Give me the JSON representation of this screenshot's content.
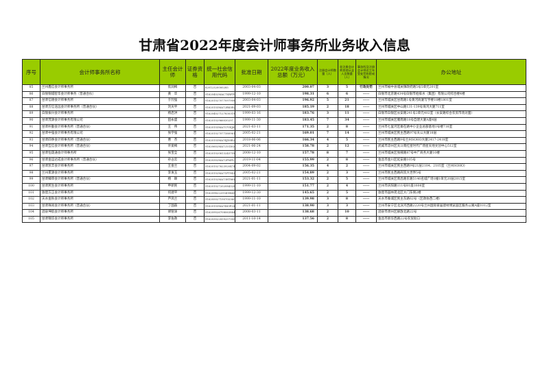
{
  "title": "甘肃省2022年度会计师事务所业务收入信息",
  "header": [
    "序号",
    "会计师事务所名称",
    "主任会计师",
    "证券资格",
    "统一社会信用代码",
    "批准日期",
    "2022年度业务收入总额（万元）",
    "注册会计师数量（人）",
    "非注册会计师其他从业人员数量（人）",
    "事务所及注册会计师近三年受处罚和惩戒情况",
    "办公地址"
  ],
  "rows": [
    [
      "85",
      "兰州鑫信会计师事务所",
      "焦润梅",
      "否",
      "62012320000285",
      "2003-04-03",
      "200.07",
      "3",
      "5",
      "行政处罚",
      "兰州市榆中县城关镇政府路5号5单元201室"
    ],
    [
      "86",
      "白银铜城智华会计师事务（普通合伙）",
      "黄　华",
      "否",
      "91620402MAC7XRFP93",
      "1999-12-10",
      "198.31",
      "6",
      "6",
      "-----",
      "白银市北京路434号白银市给排水（集团）有限公司综合楼4楼"
    ],
    [
      "87",
      "甘肃信德会计师事务所",
      "于烈强",
      "否",
      "916201027077097908",
      "2003-04-03",
      "196.92",
      "5",
      "21",
      "-----",
      "兰州市城关区甘南路1号黄河商厦写字楼18楼1801室"
    ],
    [
      "88",
      "甘肃方信浩远会计师事务所（普通合伙）",
      "刘天平",
      "否",
      "91620103MA72RK0R26",
      "2021-09-03",
      "185.19",
      "2",
      "18",
      "-----",
      "兰州市城关区中山路131-139号海鸿大厦711室"
    ],
    [
      "89",
      "白银振兴会计师事务所",
      "杨启洪",
      "否",
      "916204027127830318",
      "1999-03-16",
      "183.76",
      "3",
      "11",
      "-----",
      "白银市白银区长安路241号2单元402室（长安路综合农贸市场对面）"
    ],
    [
      "90",
      "甘肃茂源会计师事务有限公司",
      "田永盛",
      "否",
      "91620102966030297",
      "1999-11-30",
      "183.45",
      "7",
      "34",
      "-----",
      "兰州市城关区雁南路18号自建大厦A座4层"
    ],
    [
      "91",
      "甘肃朴勤会计师事务所（普通合伙）",
      "王　伟",
      "否",
      "91620103MA7570XJ6P",
      "2021-03-11",
      "171.35",
      "2",
      "8",
      "-----",
      "兰州市七里河区秦在路中小企业总部基地1号楼716室"
    ],
    [
      "92",
      "甘肃中强会计师事务有限公司",
      "张学强",
      "否",
      "916201027077380961",
      "2005-02-21",
      "169.01",
      "7",
      "14",
      "-----",
      "兰州市城关区民主西路97号天公大厦18层"
    ],
    [
      "93",
      "甘肃四季会计师事务所（普通合伙）",
      "曹　杰",
      "否",
      "91620103MA74JD8R2M",
      "2018-06-06",
      "166.34",
      "4",
      "5",
      "-----",
      "兰州市民主西路9号兰州SOHO大厦2417-2418室"
    ],
    [
      "94",
      "甘肃互信会计师事务所（普通合伙）",
      "许爱梅",
      "否",
      "91620602MA721GDQ01",
      "2021-06-24",
      "158.78",
      "2",
      "12",
      "-----",
      "武威市凉州区天斗南红星时代广场星天地文创中心512室"
    ],
    [
      "95",
      "甘肃恒晟通会计师事务所",
      "张宝全",
      "否",
      "91620102081324570X",
      "2008-12-10",
      "157.78",
      "8",
      "7",
      "-----",
      "兰州市城关区张掖路87号中广商务大厦10楼"
    ],
    [
      "96",
      "甘肃金运达成会计师事务所（普通合伙）",
      "孙占云",
      "否",
      "91620302MA72FMPL74",
      "2019-11-04",
      "155.99",
      "2",
      "8",
      "-----",
      "金昌市金川区延安路105号"
    ],
    [
      "97",
      "甘肃凯丰会计师事务所",
      "王金兰",
      "否",
      "916201027623920474",
      "2004-09-02",
      "156.35",
      "4",
      "2",
      "-----",
      "兰州市城关区民主西路9号21层2104、2105室（兰州SOHO）"
    ],
    [
      "98",
      "兰州累源会计师事务所",
      "李发玉",
      "否",
      "91620102MA71FT9438",
      "2005-02-21",
      "154.89",
      "2",
      "3",
      "-----",
      "兰州市民主西路商贸大世界5号"
    ],
    [
      "99",
      "甘肃臻审会计师事务所（普通合伙）",
      "杨　颖",
      "否",
      "91620102MA73HT66L",
      "2021-01-11",
      "153.32",
      "2",
      "5",
      "-----",
      "兰州市城关区南昌路东路5146名城广场1幢1单元20层2015室"
    ],
    [
      "100",
      "甘肃民生会计师事务所",
      "申新民",
      "否",
      "916201027202084328",
      "1999-11-10",
      "151.77",
      "2",
      "4",
      "-----",
      "兰州市庆阳路111号B1座1606室"
    ],
    [
      "101",
      "敦煌方正会计师事务所",
      "何建平",
      "否",
      "916209822251409445",
      "1999-12-30",
      "145.65",
      "2",
      "5",
      "-----",
      "敦煌市园林苑北区大门东侧2楼"
    ],
    [
      "102",
      "天水金秋会计师事务所",
      "芦凤兰",
      "否",
      "91620502719070536C",
      "1999-11-10",
      "139.98",
      "3",
      "8",
      "-----",
      "天水市秦城区民主东路62号（区政协西二楼）"
    ],
    [
      "103",
      "甘肃殊尚会计师事务所（普通合伙）",
      "丁国森",
      "否",
      "91620103MA7483P24M",
      "2021-01-11",
      "138.90",
      "3",
      "3",
      "-----",
      "兰州市安宁区北滨河西路2220号兰州国际家居建材博览园区服务公寓A座1012室"
    ],
    [
      "104",
      "酒泉坤航会计师事务所",
      "郑管泽",
      "否",
      "916209026708063884",
      "2008-03-11",
      "138.68",
      "2",
      "10",
      "-----",
      "酒泉市肃州区解放北路22号"
    ],
    [
      "105",
      "甘肃锦华会计师事务所",
      "李佐政",
      "否",
      "916203022059257300",
      "2011-10-14",
      "137.56",
      "2",
      "8",
      "-----",
      "金昌市新华西路22号农贸街口"
    ]
  ],
  "colors": {
    "header_bg": "#99cc00",
    "border": "#111111"
  }
}
